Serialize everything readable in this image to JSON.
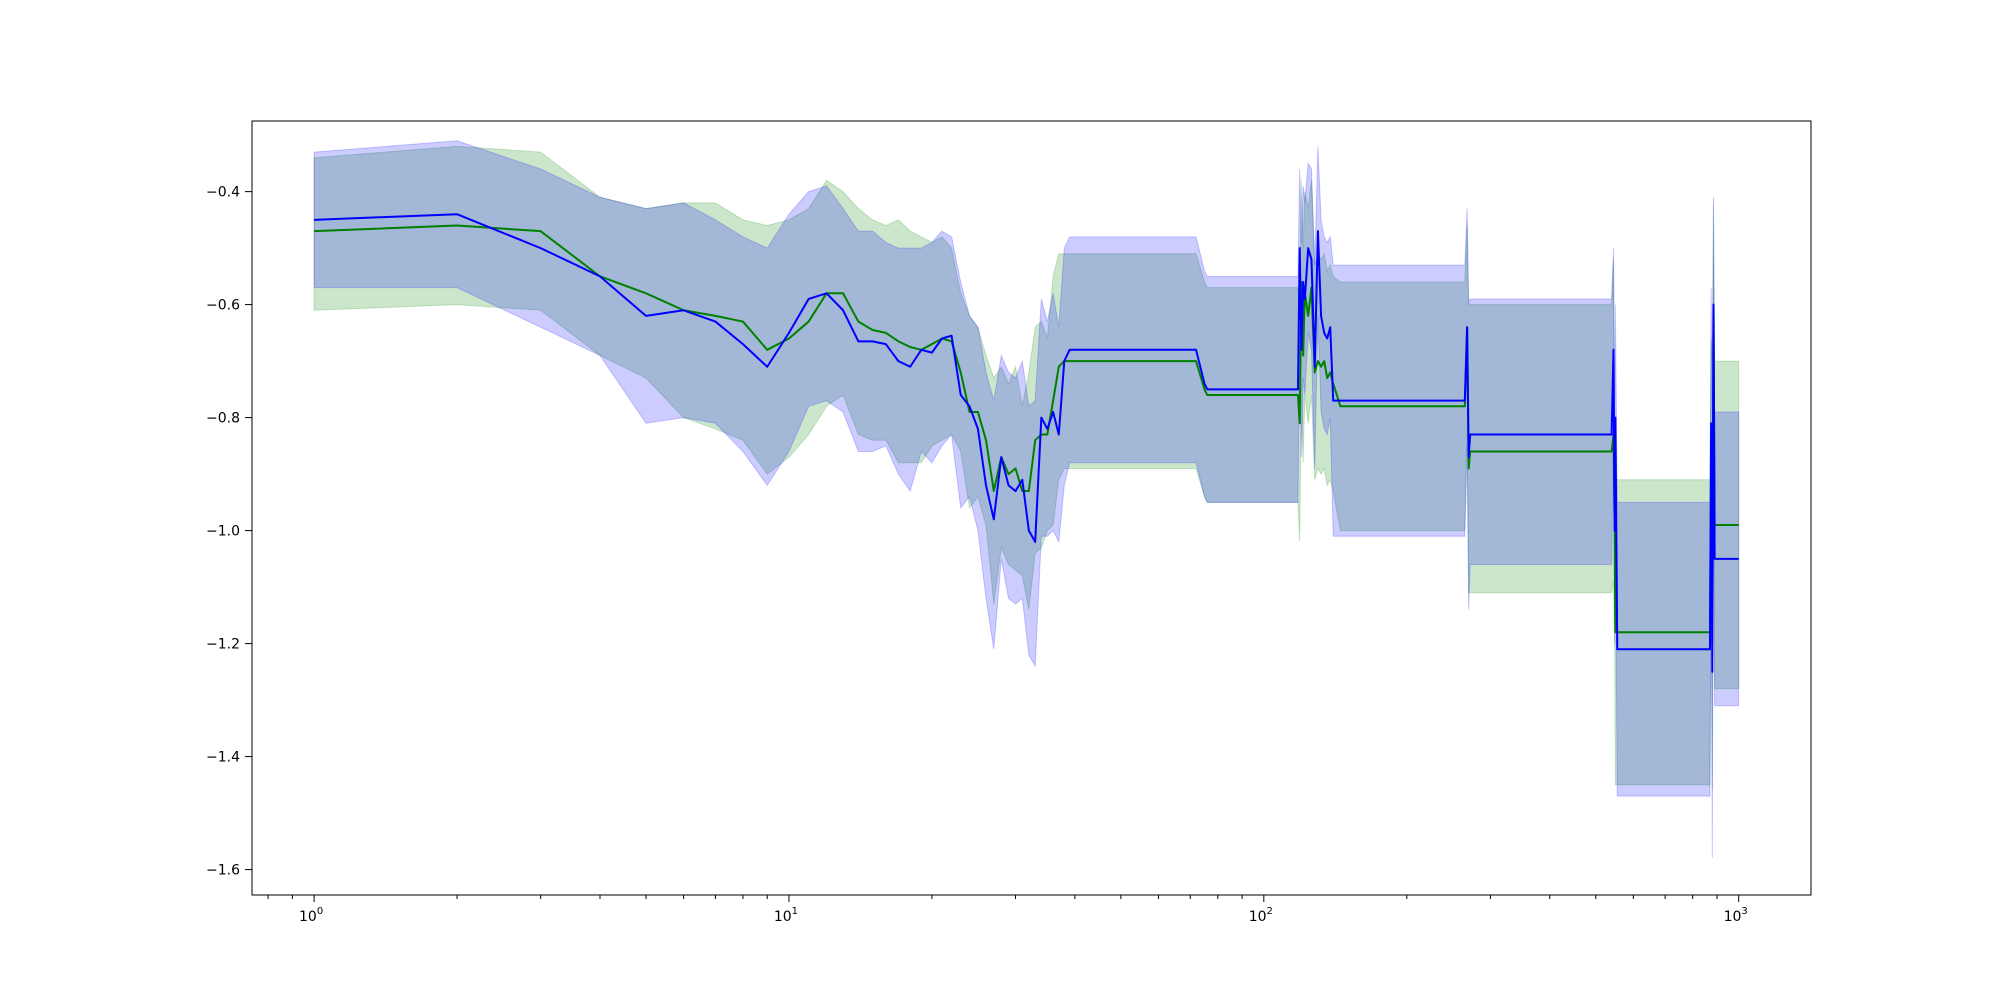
{
  "chart_data": {
    "type": "line",
    "title": "",
    "xlabel": "",
    "ylabel": "",
    "xscale": "log",
    "xlim": [
      0.74,
      1420
    ],
    "ylim": [
      -1.645,
      -0.275
    ],
    "grid": false,
    "legend": "none",
    "x_ticks": [
      {
        "base": "10",
        "exp": "0",
        "value": 1
      },
      {
        "base": "10",
        "exp": "1",
        "value": 10
      },
      {
        "base": "10",
        "exp": "2",
        "value": 100
      },
      {
        "base": "10",
        "exp": "3",
        "value": 1000
      }
    ],
    "y_ticks": [
      {
        "label": "−0.4",
        "value": -0.4
      },
      {
        "label": "−0.6",
        "value": -0.6
      },
      {
        "label": "−0.8",
        "value": -0.8
      },
      {
        "label": "−1.0",
        "value": -1.0
      },
      {
        "label": "−1.2",
        "value": -1.2
      },
      {
        "label": "−1.4",
        "value": -1.4
      },
      {
        "label": "−1.6",
        "value": -1.6
      }
    ],
    "series": [
      {
        "color": "#008000",
        "band_color": "#008000",
        "x": [
          1,
          2,
          3,
          4,
          5,
          6,
          7,
          8,
          9,
          10,
          11,
          12,
          13,
          14,
          15,
          16,
          17,
          18,
          19,
          20,
          21,
          22,
          23,
          24,
          25,
          26,
          27,
          28,
          29,
          30,
          31,
          32,
          33,
          34,
          35,
          36,
          37,
          38,
          39,
          40,
          42,
          45,
          50,
          60,
          70,
          72,
          75,
          76,
          80,
          100,
          118,
          119,
          120,
          121,
          122,
          124,
          126,
          128,
          130,
          132,
          134,
          136,
          138,
          140,
          145,
          150,
          200,
          265,
          268,
          270,
          272,
          275,
          300,
          400,
          540,
          545,
          548,
          550,
          555,
          560,
          600,
          700,
          860,
          870,
          875,
          880,
          885,
          890,
          895,
          900,
          1000
        ],
        "y": [
          -0.47,
          -0.46,
          -0.47,
          -0.55,
          -0.58,
          -0.61,
          -0.62,
          -0.63,
          -0.68,
          -0.66,
          -0.63,
          -0.58,
          -0.58,
          -0.63,
          -0.645,
          -0.65,
          -0.665,
          -0.675,
          -0.68,
          -0.67,
          -0.66,
          -0.665,
          -0.72,
          -0.79,
          -0.79,
          -0.84,
          -0.93,
          -0.87,
          -0.9,
          -0.89,
          -0.93,
          -0.93,
          -0.84,
          -0.83,
          -0.83,
          -0.77,
          -0.71,
          -0.7,
          -0.7,
          -0.7,
          -0.7,
          -0.7,
          -0.7,
          -0.7,
          -0.7,
          -0.7,
          -0.75,
          -0.76,
          -0.76,
          -0.76,
          -0.76,
          -0.81,
          -0.56,
          -0.69,
          -0.58,
          -0.62,
          -0.57,
          -0.72,
          -0.7,
          -0.71,
          -0.7,
          -0.73,
          -0.72,
          -0.74,
          -0.78,
          -0.78,
          -0.78,
          -0.78,
          -0.64,
          -0.89,
          -0.86,
          -0.86,
          -0.86,
          -0.86,
          -0.86,
          -0.83,
          -1.0,
          -1.18,
          -1.18,
          -1.18,
          -1.18,
          -1.18,
          -1.18,
          -1.18,
          -0.86,
          -1.2,
          -0.6,
          -0.99,
          -0.99,
          -0.99,
          -0.99
        ],
        "upper": [
          -0.34,
          -0.32,
          -0.33,
          -0.41,
          -0.43,
          -0.42,
          -0.42,
          -0.45,
          -0.46,
          -0.45,
          -0.43,
          -0.38,
          -0.4,
          -0.43,
          -0.45,
          -0.46,
          -0.45,
          -0.47,
          -0.48,
          -0.49,
          -0.48,
          -0.5,
          -0.58,
          -0.62,
          -0.64,
          -0.69,
          -0.73,
          -0.71,
          -0.74,
          -0.71,
          -0.78,
          -0.72,
          -0.64,
          -0.63,
          -0.66,
          -0.55,
          -0.51,
          -0.51,
          -0.51,
          -0.51,
          -0.51,
          -0.51,
          -0.51,
          -0.51,
          -0.51,
          -0.51,
          -0.56,
          -0.57,
          -0.57,
          -0.57,
          -0.57,
          -0.62,
          -0.38,
          -0.5,
          -0.4,
          -0.43,
          -0.38,
          -0.53,
          -0.51,
          -0.52,
          -0.51,
          -0.54,
          -0.53,
          -0.55,
          -0.56,
          -0.56,
          -0.56,
          -0.56,
          -0.46,
          -0.6,
          -0.6,
          -0.6,
          -0.6,
          -0.6,
          -0.6,
          -0.52,
          -0.8,
          -0.91,
          -0.91,
          -0.91,
          -0.91,
          -0.91,
          -0.91,
          -0.91,
          -0.66,
          -0.7,
          -0.42,
          -0.7,
          -0.7,
          -0.7,
          -0.7
        ],
        "lower": [
          -0.61,
          -0.6,
          -0.61,
          -0.69,
          -0.73,
          -0.8,
          -0.82,
          -0.84,
          -0.9,
          -0.87,
          -0.83,
          -0.78,
          -0.76,
          -0.83,
          -0.84,
          -0.84,
          -0.88,
          -0.88,
          -0.88,
          -0.85,
          -0.84,
          -0.83,
          -0.86,
          -0.96,
          -0.94,
          -0.99,
          -1.13,
          -1.03,
          -1.06,
          -1.07,
          -1.08,
          -1.14,
          -1.04,
          -1.03,
          -1.0,
          -0.99,
          -0.91,
          -0.89,
          -0.89,
          -0.89,
          -0.89,
          -0.89,
          -0.89,
          -0.89,
          -0.89,
          -0.89,
          -0.94,
          -0.95,
          -0.95,
          -0.95,
          -0.95,
          -1.02,
          -0.74,
          -0.88,
          -0.76,
          -0.81,
          -0.76,
          -0.91,
          -0.89,
          -0.9,
          -0.89,
          -0.92,
          -0.91,
          -0.93,
          -1.0,
          -1.0,
          -1.0,
          -1.0,
          -0.82,
          -1.11,
          -1.11,
          -1.11,
          -1.11,
          -1.11,
          -1.11,
          -1.09,
          -1.2,
          -1.45,
          -1.45,
          -1.45,
          -1.45,
          -1.45,
          -1.45,
          -1.45,
          -1.06,
          -1.46,
          -0.78,
          -1.28,
          -1.28,
          -1.28,
          -1.28
        ]
      },
      {
        "color": "#0000ff",
        "band_color": "#0000ff",
        "x": [
          1,
          2,
          3,
          4,
          5,
          6,
          7,
          8,
          9,
          10,
          11,
          12,
          13,
          14,
          15,
          16,
          17,
          18,
          19,
          20,
          21,
          22,
          23,
          24,
          25,
          26,
          27,
          28,
          29,
          30,
          31,
          32,
          33,
          34,
          35,
          36,
          37,
          38,
          39,
          40,
          42,
          45,
          50,
          60,
          70,
          72,
          75,
          76,
          80,
          100,
          118,
          119,
          120,
          121,
          122,
          124,
          126,
          128,
          130,
          132,
          134,
          136,
          138,
          140,
          145,
          150,
          200,
          265,
          268,
          270,
          272,
          275,
          300,
          400,
          540,
          545,
          548,
          550,
          555,
          560,
          600,
          700,
          860,
          870,
          875,
          880,
          885,
          890,
          895,
          900,
          1000
        ],
        "y": [
          -0.45,
          -0.44,
          -0.5,
          -0.55,
          -0.62,
          -0.61,
          -0.63,
          -0.67,
          -0.71,
          -0.65,
          -0.59,
          -0.58,
          -0.61,
          -0.665,
          -0.665,
          -0.67,
          -0.7,
          -0.71,
          -0.68,
          -0.685,
          -0.66,
          -0.655,
          -0.76,
          -0.78,
          -0.82,
          -0.92,
          -0.98,
          -0.87,
          -0.92,
          -0.93,
          -0.91,
          -1.0,
          -1.02,
          -0.8,
          -0.82,
          -0.79,
          -0.83,
          -0.7,
          -0.68,
          -0.68,
          -0.68,
          -0.68,
          -0.68,
          -0.68,
          -0.68,
          -0.68,
          -0.74,
          -0.75,
          -0.75,
          -0.75,
          -0.75,
          -0.5,
          -0.68,
          -0.56,
          -0.59,
          -0.5,
          -0.52,
          -0.71,
          -0.47,
          -0.62,
          -0.65,
          -0.66,
          -0.64,
          -0.77,
          -0.77,
          -0.77,
          -0.77,
          -0.77,
          -0.64,
          -0.87,
          -0.83,
          -0.83,
          -0.83,
          -0.83,
          -0.83,
          -0.68,
          -1.0,
          -0.8,
          -1.21,
          -1.21,
          -1.21,
          -1.21,
          -1.21,
          -1.21,
          -0.81,
          -1.25,
          -0.6,
          -1.05,
          -1.05,
          -1.05,
          -1.05
        ],
        "upper": [
          -0.33,
          -0.31,
          -0.36,
          -0.41,
          -0.43,
          -0.42,
          -0.45,
          -0.48,
          -0.5,
          -0.44,
          -0.4,
          -0.39,
          -0.43,
          -0.47,
          -0.47,
          -0.49,
          -0.5,
          -0.5,
          -0.5,
          -0.49,
          -0.47,
          -0.48,
          -0.56,
          -0.62,
          -0.64,
          -0.72,
          -0.77,
          -0.69,
          -0.72,
          -0.73,
          -0.7,
          -0.78,
          -0.77,
          -0.59,
          -0.63,
          -0.58,
          -0.64,
          -0.5,
          -0.48,
          -0.48,
          -0.48,
          -0.48,
          -0.48,
          -0.48,
          -0.48,
          -0.48,
          -0.54,
          -0.55,
          -0.55,
          -0.55,
          -0.55,
          -0.36,
          -0.49,
          -0.39,
          -0.42,
          -0.35,
          -0.36,
          -0.53,
          -0.32,
          -0.45,
          -0.48,
          -0.49,
          -0.48,
          -0.53,
          -0.53,
          -0.53,
          -0.53,
          -0.53,
          -0.43,
          -0.6,
          -0.59,
          -0.59,
          -0.59,
          -0.59,
          -0.59,
          -0.5,
          -0.8,
          -0.6,
          -0.95,
          -0.95,
          -0.95,
          -0.95,
          -0.95,
          -0.95,
          -0.57,
          -0.8,
          -0.41,
          -0.79,
          -0.79,
          -0.79,
          -0.79
        ],
        "lower": [
          -0.57,
          -0.57,
          -0.64,
          -0.69,
          -0.81,
          -0.8,
          -0.81,
          -0.86,
          -0.92,
          -0.86,
          -0.78,
          -0.77,
          -0.79,
          -0.86,
          -0.86,
          -0.85,
          -0.9,
          -0.93,
          -0.86,
          -0.88,
          -0.85,
          -0.83,
          -0.96,
          -0.94,
          -1.0,
          -1.12,
          -1.21,
          -1.05,
          -1.12,
          -1.13,
          -1.12,
          -1.22,
          -1.24,
          -1.01,
          -1.01,
          -1.0,
          -1.02,
          -0.92,
          -0.88,
          -0.88,
          -0.88,
          -0.88,
          -0.88,
          -0.88,
          -0.88,
          -0.88,
          -0.94,
          -0.95,
          -0.95,
          -0.95,
          -0.95,
          -0.64,
          -0.87,
          -0.73,
          -0.76,
          -0.65,
          -0.68,
          -0.89,
          -0.62,
          -0.79,
          -0.82,
          -0.83,
          -0.8,
          -1.01,
          -1.01,
          -1.01,
          -1.01,
          -1.01,
          -0.85,
          -1.14,
          -1.06,
          -1.06,
          -1.06,
          -1.06,
          -1.06,
          -0.86,
          -1.2,
          -1.0,
          -1.47,
          -1.47,
          -1.47,
          -1.47,
          -1.47,
          -1.47,
          -1.05,
          -1.58,
          -0.79,
          -1.31,
          -1.31,
          -1.31,
          -1.31
        ]
      }
    ]
  }
}
